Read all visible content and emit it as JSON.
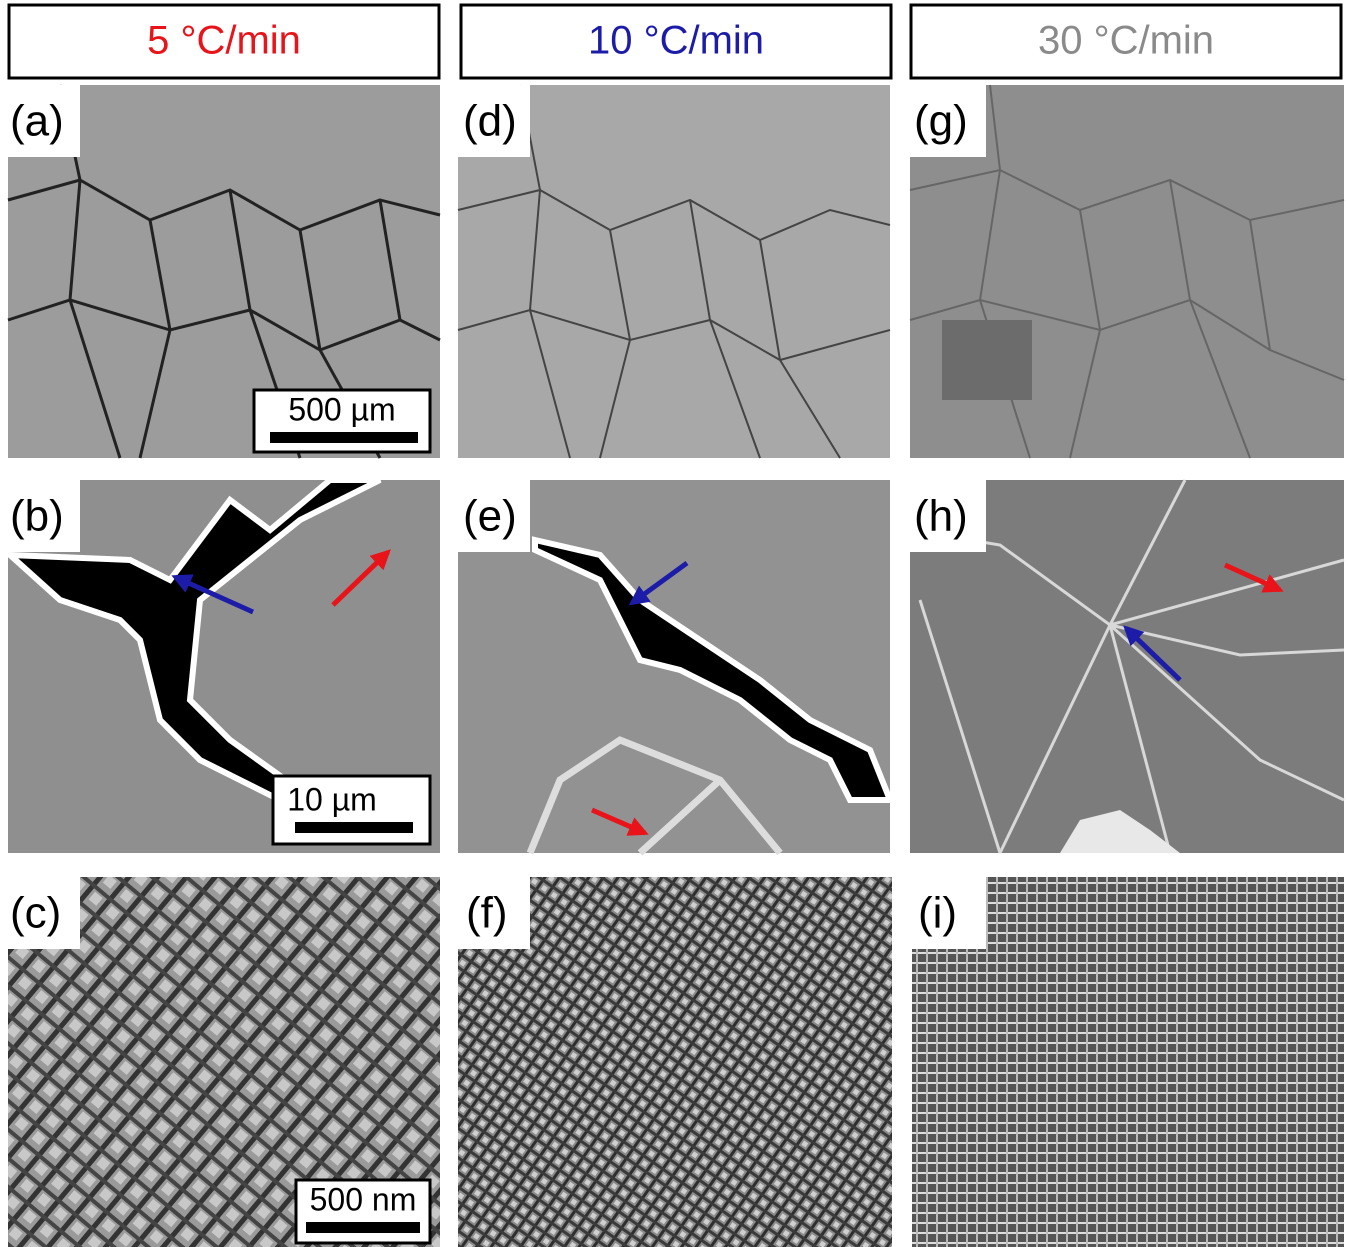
{
  "columns": [
    {
      "header": "5 °C/min",
      "header_color": "#e8141a",
      "panels": [
        {
          "label": "(a)",
          "scale_bar": "500 µm"
        },
        {
          "label": "(b)",
          "scale_bar": "10 µm"
        },
        {
          "label": "(c)",
          "scale_bar": "500 nm"
        }
      ]
    },
    {
      "header": "10 °C/min",
      "header_color": "#1c1ca8",
      "panels": [
        {
          "label": "(d)"
        },
        {
          "label": "(e)"
        },
        {
          "label": "(f)"
        }
      ]
    },
    {
      "header": "30 °C/min",
      "header_color": "#8a8a8a",
      "panels": [
        {
          "label": "(g)"
        },
        {
          "label": "(h)"
        },
        {
          "label": "(i)"
        }
      ]
    }
  ]
}
